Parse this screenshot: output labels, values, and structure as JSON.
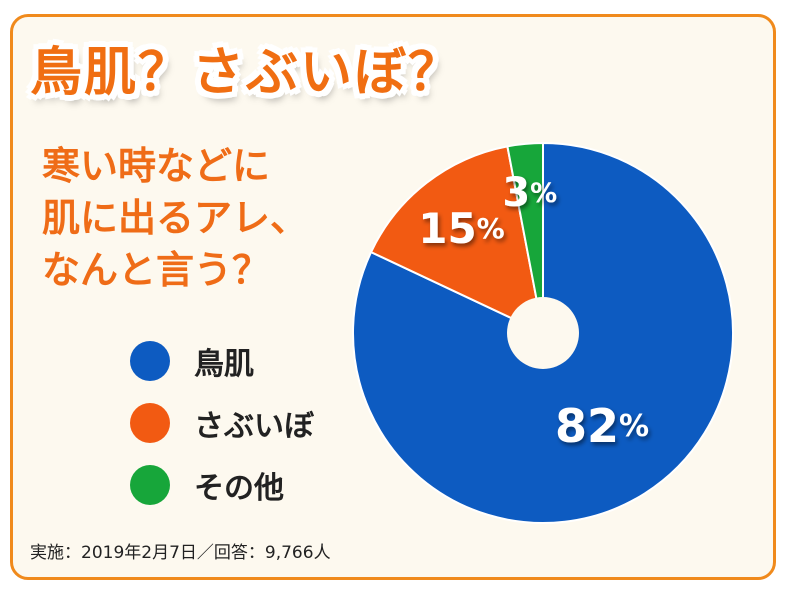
{
  "title": "鳥肌？さぶいぼ？",
  "question": {
    "lines": [
      "寒い時などに",
      "肌に出るアレ、",
      "なんと言う？"
    ]
  },
  "footnote": "実施：2019年2月7日／回答：9,766人",
  "colors": {
    "frame_border": "#f08a1c",
    "background": "#fdf9ef",
    "title": "#f06e12",
    "question": "#ef6c17"
  },
  "chart_data": {
    "type": "pie",
    "style": "donut",
    "categories": [
      "鳥肌",
      "さぶいぼ",
      "その他"
    ],
    "values": [
      82,
      15,
      3
    ],
    "labels": [
      "82%",
      "15%",
      "3%"
    ],
    "colors": [
      "#0d5bc1",
      "#f25a12",
      "#17a63a"
    ],
    "start_angle_deg": 0,
    "direction": "clockwise",
    "legend_position": "left"
  }
}
